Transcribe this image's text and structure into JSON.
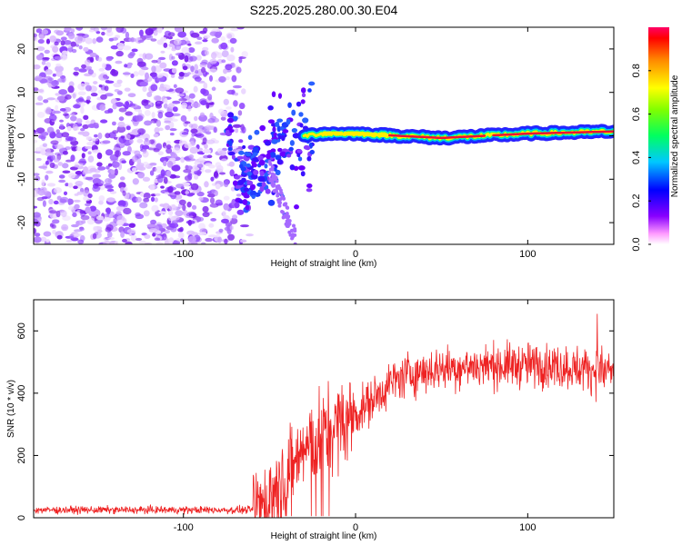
{
  "title": "S225.2025.280.00.30.E04",
  "chart_data": [
    {
      "type": "heatmap",
      "title": "S225.2025.280.00.30.E04",
      "xlabel": "Height of straight line (km)",
      "ylabel": "Frequency (Hz)",
      "xlim": [
        -187,
        150
      ],
      "ylim": [
        -25,
        25
      ],
      "xticks": [
        -100,
        0,
        100
      ],
      "yticks": [
        -20,
        -10,
        0,
        10,
        20
      ],
      "xtick_labels": [
        "-100",
        "0",
        "100"
      ],
      "ytick_labels": [
        "-20",
        "-10",
        "0",
        "10",
        "20"
      ],
      "description_points": {
        "noise_region_x": [
          -187,
          -60
        ],
        "transition_region_x": [
          -75,
          -25
        ],
        "signal_band_x": [
          -25,
          150
        ],
        "signal_band_frequency_hz": [
          {
            "x": -70,
            "f": -8
          },
          {
            "x": -60,
            "f": -6
          },
          {
            "x": -50,
            "f": -4
          },
          {
            "x": -40,
            "f": -2
          },
          {
            "x": -30,
            "f": 0
          },
          {
            "x": -20,
            "f": 0.5
          },
          {
            "x": 0,
            "f": 0.5
          },
          {
            "x": 50,
            "f": -0.5
          },
          {
            "x": 100,
            "f": 0.5
          },
          {
            "x": 150,
            "f": 1
          }
        ]
      },
      "colorbar": {
        "label": "Normalized spectral amplitude",
        "range": [
          0,
          1
        ],
        "ticks": [
          "0.0",
          "0.2",
          "0.4",
          "0.6",
          "0.8"
        ],
        "tick_values": [
          0.0,
          0.2,
          0.4,
          0.6,
          0.8
        ]
      }
    },
    {
      "type": "line",
      "xlabel": "Height of straight line (km)",
      "ylabel": "SNR (10 * v/v)",
      "xlim": [
        -187,
        150
      ],
      "ylim": [
        0,
        700
      ],
      "xticks": [
        -100,
        0,
        100
      ],
      "yticks": [
        0,
        200,
        400,
        600
      ],
      "xtick_labels": [
        "-100",
        "0",
        "100"
      ],
      "ytick_labels": [
        "0",
        "200",
        "400",
        "600"
      ],
      "series": [
        {
          "name": "SNR",
          "color": "#ee2222",
          "trend": [
            {
              "x": -187,
              "y": 25
            },
            {
              "x": -120,
              "y": 25
            },
            {
              "x": -60,
              "y": 25
            },
            {
              "x": -50,
              "y": 60
            },
            {
              "x": -40,
              "y": 150
            },
            {
              "x": -30,
              "y": 220
            },
            {
              "x": -20,
              "y": 260
            },
            {
              "x": -10,
              "y": 300
            },
            {
              "x": 0,
              "y": 330
            },
            {
              "x": 10,
              "y": 380
            },
            {
              "x": 20,
              "y": 430
            },
            {
              "x": 30,
              "y": 460
            },
            {
              "x": 50,
              "y": 480
            },
            {
              "x": 80,
              "y": 490
            },
            {
              "x": 110,
              "y": 490
            },
            {
              "x": 150,
              "y": 470
            }
          ],
          "max": 690,
          "min": 0
        }
      ]
    }
  ],
  "colors": {
    "series": "#ee2222",
    "noise": "#7a2cff",
    "signal_core": "#ee1133"
  }
}
